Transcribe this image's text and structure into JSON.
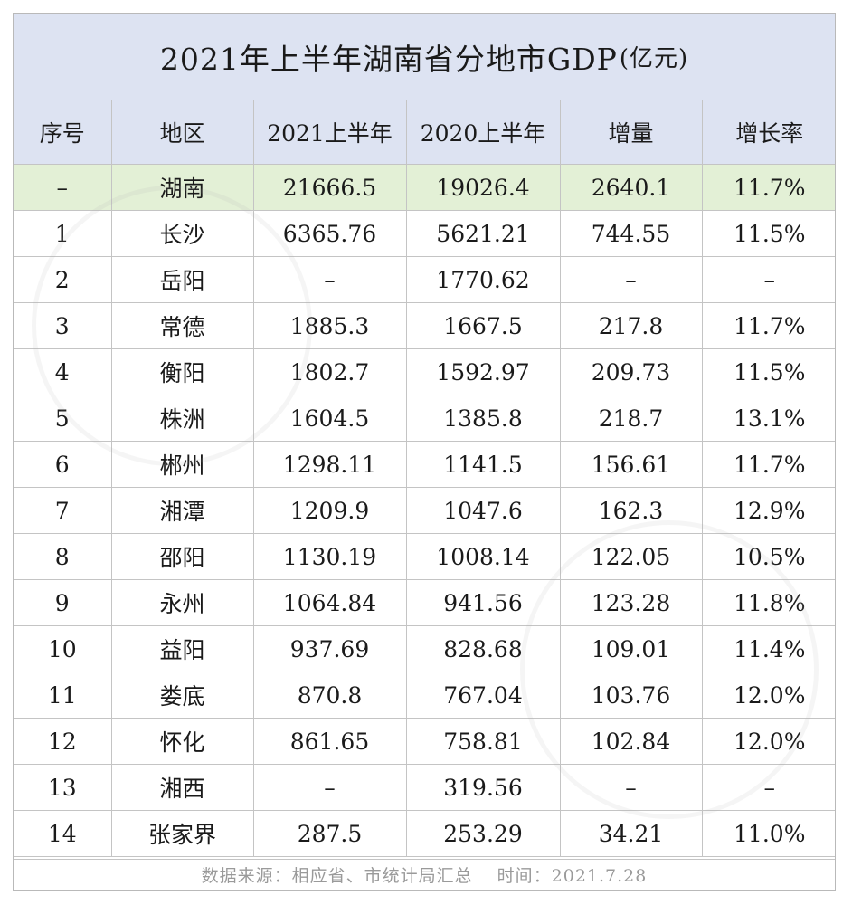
{
  "title": "2021年上半年湖南省分地市GDP",
  "unit": "(亿元)",
  "headers": [
    "序号",
    "地区",
    "2021上半年",
    "2020上半年",
    "增量",
    "增长率"
  ],
  "rows": [
    [
      "–",
      "湖南",
      "21666.5",
      "19026.4",
      "2640.1",
      "11.7%"
    ],
    [
      "1",
      "长沙",
      "6365.76",
      "5621.21",
      "744.55",
      "11.5%"
    ],
    [
      "2",
      "岳阳",
      "–",
      "1770.62",
      "–",
      "–"
    ],
    [
      "3",
      "常德",
      "1885.3",
      "1667.5",
      "217.8",
      "11.7%"
    ],
    [
      "4",
      "衡阳",
      "1802.7",
      "1592.97",
      "209.73",
      "11.5%"
    ],
    [
      "5",
      "株洲",
      "1604.5",
      "1385.8",
      "218.7",
      "13.1%"
    ],
    [
      "6",
      "郴州",
      "1298.11",
      "1141.5",
      "156.61",
      "11.7%"
    ],
    [
      "7",
      "湘潭",
      "1209.9",
      "1047.6",
      "162.3",
      "12.9%"
    ],
    [
      "8",
      "邵阳",
      "1130.19",
      "1008.14",
      "122.05",
      "10.5%"
    ],
    [
      "9",
      "永州",
      "1064.84",
      "941.56",
      "123.28",
      "11.8%"
    ],
    [
      "10",
      "益阳",
      "937.69",
      "828.68",
      "109.01",
      "11.4%"
    ],
    [
      "11",
      "娄底",
      "870.8",
      "767.04",
      "103.76",
      "12.0%"
    ],
    [
      "12",
      "怀化",
      "861.65",
      "758.81",
      "102.84",
      "12.0%"
    ],
    [
      "13",
      "湘西",
      "–",
      "319.56",
      "–",
      "–"
    ],
    [
      "14",
      "张家界",
      "287.5",
      "253.29",
      "34.21",
      "11.0%"
    ]
  ],
  "footer": "数据来源：相应省、市统计局汇总　 时间：2021.7.28",
  "colors": {
    "header_bg": "#dde3f2",
    "total_row_bg": "#e3f0d6",
    "border": "#c4c4c4",
    "footer_text": "#9a9a9a"
  }
}
